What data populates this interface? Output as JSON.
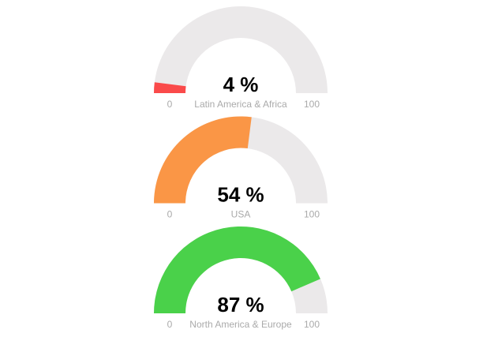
{
  "chart_data": [
    {
      "type": "gauge",
      "categories": [
        "Latin America & Africa"
      ],
      "values": [
        4
      ],
      "value_labels": [
        "4 %"
      ],
      "color": "#fa4a4a",
      "ylim": [
        0,
        100
      ],
      "yticks": [
        0,
        100
      ]
    },
    {
      "type": "gauge",
      "categories": [
        "USA"
      ],
      "values": [
        54
      ],
      "value_labels": [
        "54 %"
      ],
      "color": "#fa9646",
      "ylim": [
        0,
        100
      ],
      "yticks": [
        0,
        100
      ]
    },
    {
      "type": "gauge",
      "categories": [
        "North America & Europe"
      ],
      "values": [
        87
      ],
      "value_labels": [
        "87 %"
      ],
      "color": "#4ad14a",
      "ylim": [
        0,
        100
      ],
      "yticks": [
        0,
        100
      ]
    }
  ]
}
